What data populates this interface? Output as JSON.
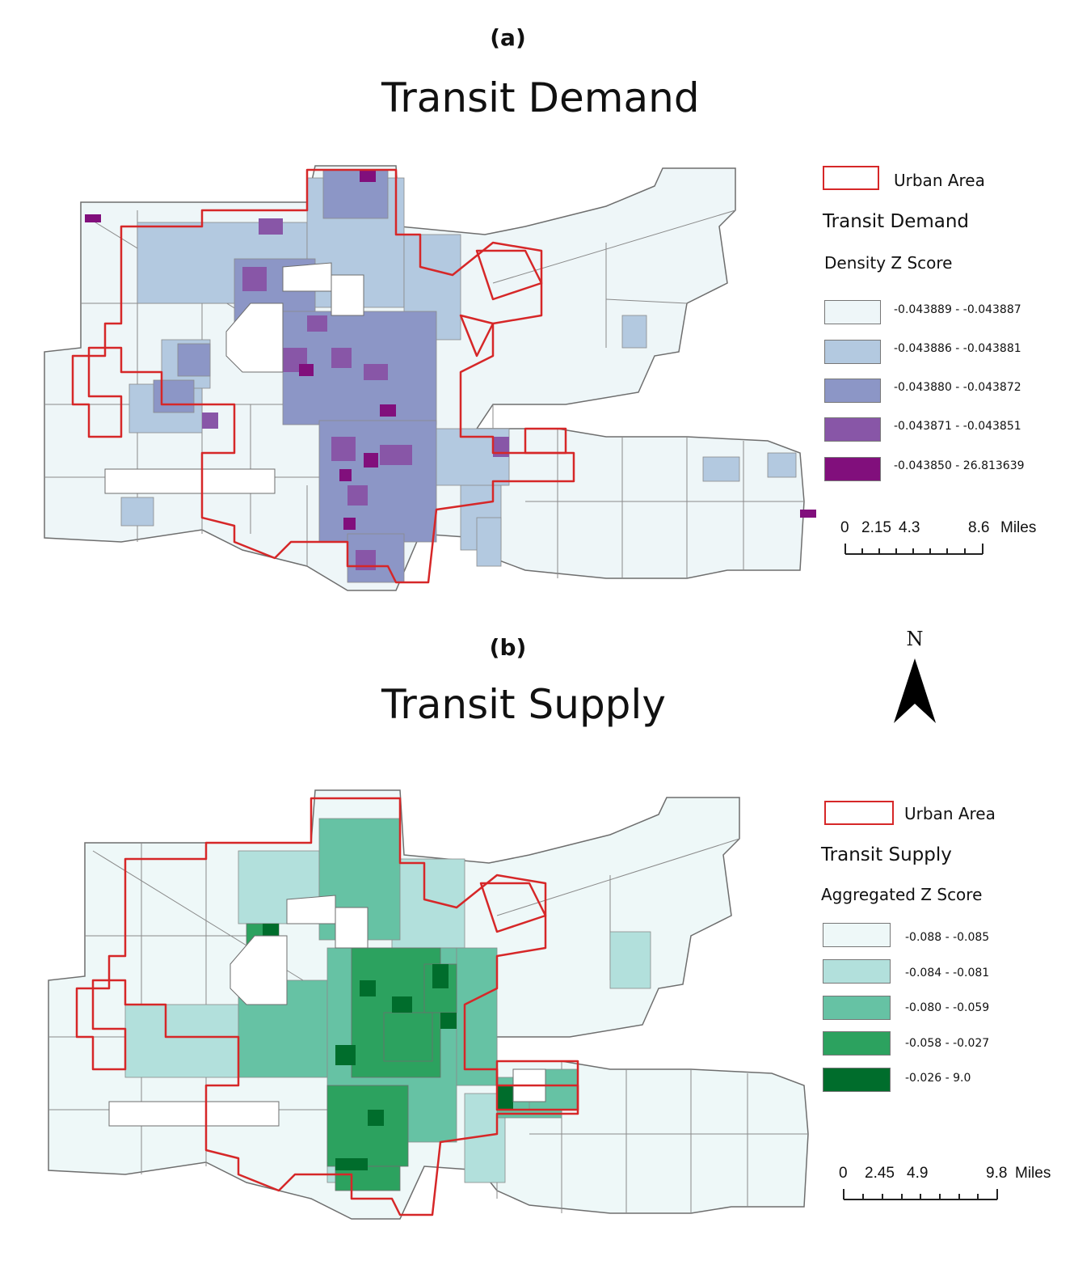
{
  "panel_a": {
    "letter": "(a)",
    "title": "Transit Demand",
    "legend": {
      "urban_label": "Urban Area",
      "title": "Transit Demand",
      "subtitle": "Density Z Score",
      "classes": [
        {
          "label": "-0.043889 - -0.043887",
          "color": "#eef6f8"
        },
        {
          "label": "-0.043886 - -0.043881",
          "color": "#b3c9e0"
        },
        {
          "label": "-0.043880 - -0.043872",
          "color": "#8c96c6"
        },
        {
          "label": "-0.043871 - -0.043851",
          "color": "#8856a7"
        },
        {
          "label": "-0.043850 - 26.813639",
          "color": "#810f7c"
        }
      ]
    },
    "scale": {
      "ticks": [
        "0",
        "2.15",
        "4.3",
        "8.6"
      ],
      "unit": "Miles"
    }
  },
  "panel_b": {
    "letter": "(b)",
    "title": "Transit Supply",
    "legend": {
      "urban_label": "Urban Area",
      "title": "Transit Supply",
      "subtitle": "Aggregated Z Score",
      "classes": [
        {
          "label": "-0.088 - -0.085",
          "color": "#eef8f8"
        },
        {
          "label": "-0.084 - -0.081",
          "color": "#b2e0dc"
        },
        {
          "label": "-0.080 - -0.059",
          "color": "#66c2a4"
        },
        {
          "label": "-0.058 - -0.027",
          "color": "#2ca25f"
        },
        {
          "label": "-0.026 - 9.0",
          "color": "#006d2c"
        }
      ]
    },
    "scale": {
      "ticks": [
        "0",
        "2.45",
        "4.9",
        "9.8"
      ],
      "unit": "Miles"
    }
  },
  "north_arrow": {
    "label": "N"
  },
  "colors": {
    "urban_outline": "#d62728",
    "tract_stroke": "#6e6e6e"
  }
}
